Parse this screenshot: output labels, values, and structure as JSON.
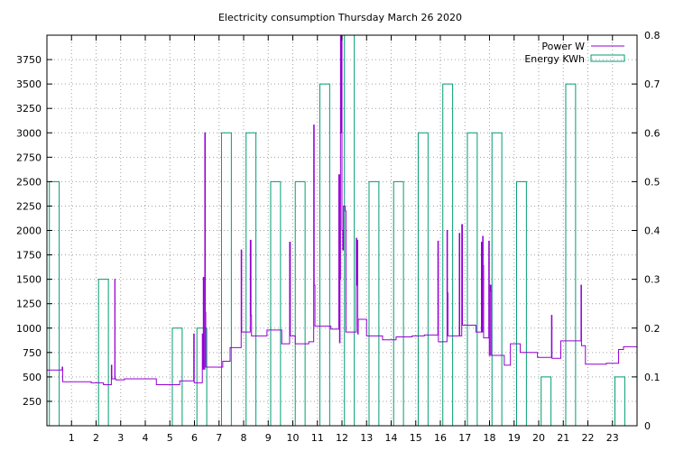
{
  "chart_data": {
    "type": "line",
    "title": "Electricity consumption Thursday March 26 2020",
    "xlabel": "",
    "ylabel": "",
    "y2label": "",
    "xlim": [
      0,
      24
    ],
    "ylim": [
      0,
      4000
    ],
    "y2lim": [
      0,
      0.8
    ],
    "x_ticks": [
      1,
      2,
      3,
      4,
      5,
      6,
      7,
      8,
      9,
      10,
      11,
      12,
      13,
      14,
      15,
      16,
      17,
      18,
      19,
      20,
      21,
      22,
      23
    ],
    "y_ticks": [
      250,
      500,
      750,
      1000,
      1250,
      1500,
      1750,
      2000,
      2250,
      2500,
      2750,
      3000,
      3250,
      3500,
      3750
    ],
    "y2_ticks": [
      0,
      0.1,
      0.2,
      0.3,
      0.4,
      0.5,
      0.6,
      0.7,
      0.8
    ],
    "grid": true,
    "legend_position": "top-right",
    "series": [
      {
        "name": "Power W",
        "axis": "left",
        "style": "line",
        "color": "#9400d3",
        "points": [
          [
            0.0,
            570
          ],
          [
            0.6,
            570
          ],
          [
            0.62,
            600
          ],
          [
            0.64,
            450
          ],
          [
            1.8,
            440
          ],
          [
            2.2,
            440
          ],
          [
            2.3,
            420
          ],
          [
            2.6,
            420
          ],
          [
            2.62,
            620
          ],
          [
            2.64,
            480
          ],
          [
            2.75,
            480
          ],
          [
            2.76,
            1500
          ],
          [
            2.77,
            480
          ],
          [
            2.8,
            470
          ],
          [
            3.1,
            470
          ],
          [
            3.15,
            480
          ],
          [
            4.4,
            480
          ],
          [
            4.45,
            420
          ],
          [
            5.3,
            420
          ],
          [
            5.4,
            460
          ],
          [
            5.95,
            460
          ],
          [
            5.97,
            940
          ],
          [
            5.99,
            440
          ],
          [
            6.3,
            440
          ],
          [
            6.32,
            940
          ],
          [
            6.34,
            580
          ],
          [
            6.36,
            1520
          ],
          [
            6.38,
            580
          ],
          [
            6.42,
            3000
          ],
          [
            6.44,
            1160
          ],
          [
            6.46,
            600
          ],
          [
            7.1,
            600
          ],
          [
            7.15,
            660
          ],
          [
            7.4,
            660
          ],
          [
            7.45,
            800
          ],
          [
            7.85,
            800
          ],
          [
            7.9,
            1800
          ],
          [
            7.92,
            960
          ],
          [
            8.25,
            960
          ],
          [
            8.27,
            1900
          ],
          [
            8.3,
            1130
          ],
          [
            8.32,
            920
          ],
          [
            8.9,
            920
          ],
          [
            8.95,
            980
          ],
          [
            9.5,
            980
          ],
          [
            9.55,
            840
          ],
          [
            9.85,
            840
          ],
          [
            9.87,
            1880
          ],
          [
            9.9,
            920
          ],
          [
            10.05,
            920
          ],
          [
            10.1,
            840
          ],
          [
            10.6,
            840
          ],
          [
            10.65,
            860
          ],
          [
            10.8,
            860
          ],
          [
            10.85,
            3080
          ],
          [
            10.87,
            1440
          ],
          [
            10.9,
            1020
          ],
          [
            11.5,
            1020
          ],
          [
            11.55,
            990
          ],
          [
            11.85,
            990
          ],
          [
            11.87,
            2570
          ],
          [
            11.9,
            850
          ],
          [
            11.92,
            1500
          ],
          [
            11.94,
            4000
          ],
          [
            11.96,
            3000
          ],
          [
            11.98,
            4000
          ],
          [
            12.0,
            2000
          ],
          [
            12.03,
            1800
          ],
          [
            12.06,
            2250
          ],
          [
            12.1,
            2250
          ],
          [
            12.13,
            2200
          ],
          [
            12.16,
            960
          ],
          [
            12.55,
            960
          ],
          [
            12.58,
            1920
          ],
          [
            12.6,
            1440
          ],
          [
            12.62,
            1900
          ],
          [
            12.64,
            940
          ],
          [
            12.66,
            1090
          ],
          [
            12.95,
            1090
          ],
          [
            13.0,
            920
          ],
          [
            13.6,
            920
          ],
          [
            13.65,
            880
          ],
          [
            14.15,
            880
          ],
          [
            14.2,
            910
          ],
          [
            14.8,
            910
          ],
          [
            14.85,
            920
          ],
          [
            15.3,
            920
          ],
          [
            15.35,
            930
          ],
          [
            15.85,
            930
          ],
          [
            15.9,
            1890
          ],
          [
            15.92,
            860
          ],
          [
            16.25,
            860
          ],
          [
            16.27,
            2000
          ],
          [
            16.29,
            1360
          ],
          [
            16.31,
            920
          ],
          [
            16.75,
            920
          ],
          [
            16.77,
            1970
          ],
          [
            16.79,
            920
          ],
          [
            16.85,
            920
          ],
          [
            16.87,
            2060
          ],
          [
            16.9,
            1030
          ],
          [
            17.4,
            1030
          ],
          [
            17.45,
            960
          ],
          [
            17.65,
            960
          ],
          [
            17.67,
            1880
          ],
          [
            17.69,
            960
          ],
          [
            17.72,
            1940
          ],
          [
            17.74,
            1640
          ],
          [
            17.76,
            900
          ],
          [
            17.95,
            900
          ],
          [
            17.97,
            1890
          ],
          [
            17.99,
            720
          ],
          [
            18.03,
            1440
          ],
          [
            18.06,
            1380
          ],
          [
            18.08,
            720
          ],
          [
            18.55,
            720
          ],
          [
            18.6,
            620
          ],
          [
            18.8,
            620
          ],
          [
            18.85,
            840
          ],
          [
            19.2,
            840
          ],
          [
            19.25,
            750
          ],
          [
            19.9,
            750
          ],
          [
            19.95,
            700
          ],
          [
            20.5,
            700
          ],
          [
            20.52,
            1130
          ],
          [
            20.54,
            690
          ],
          [
            20.85,
            690
          ],
          [
            20.9,
            870
          ],
          [
            21.7,
            870
          ],
          [
            21.72,
            1440
          ],
          [
            21.74,
            820
          ],
          [
            21.85,
            820
          ],
          [
            21.9,
            630
          ],
          [
            22.7,
            630
          ],
          [
            22.75,
            640
          ],
          [
            23.2,
            640
          ],
          [
            23.25,
            780
          ],
          [
            23.4,
            780
          ],
          [
            23.45,
            810
          ],
          [
            24.0,
            810
          ]
        ]
      },
      {
        "name": "Energy KWh",
        "axis": "right",
        "style": "boxes",
        "color": "#009e73",
        "bars": [
          [
            0,
            0.5
          ],
          [
            1,
            0
          ],
          [
            2,
            0.3
          ],
          [
            3,
            0
          ],
          [
            4,
            0
          ],
          [
            5,
            0.2
          ],
          [
            6,
            0.2
          ],
          [
            7,
            0.6
          ],
          [
            8,
            0.6
          ],
          [
            9,
            0.5
          ],
          [
            10,
            0.5
          ],
          [
            11,
            0.7
          ],
          [
            12,
            0.8
          ],
          [
            13,
            0.5
          ],
          [
            14,
            0.5
          ],
          [
            15,
            0.6
          ],
          [
            16,
            0.7
          ],
          [
            17,
            0.6
          ],
          [
            18,
            0.6
          ],
          [
            19,
            0.5
          ],
          [
            20,
            0.1
          ],
          [
            21,
            0.7
          ],
          [
            22,
            0
          ],
          [
            23,
            0.1
          ]
        ]
      }
    ]
  }
}
